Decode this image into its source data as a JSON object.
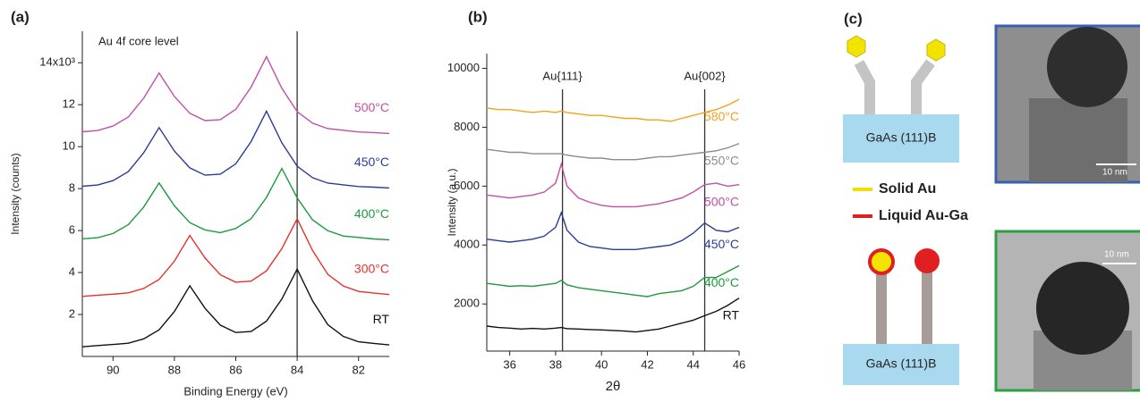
{
  "chart_data": [
    {
      "type": "line",
      "label": "(a)",
      "title": "Au 4f core level",
      "x_label": "Binding Energy (eV)",
      "y_label": "Intensity (counts)",
      "xlim": [
        91,
        81
      ],
      "xticks": [
        90,
        88,
        86,
        84,
        82
      ],
      "ylim": [
        0,
        15.5
      ],
      "yticks": [
        2,
        4,
        6,
        8,
        10,
        12,
        {
          "value": 14,
          "label": "14x10³"
        }
      ],
      "vlines": [
        84
      ],
      "x": [
        91,
        90.5,
        90,
        89.5,
        89,
        88.5,
        88,
        87.5,
        87,
        86.5,
        86,
        85.5,
        85,
        84.5,
        84,
        83.5,
        83,
        82.5,
        82,
        81.5,
        81
      ],
      "series": [
        {
          "name": "RT",
          "color": "#111111",
          "values": [
            0.46,
            0.52,
            0.57,
            0.63,
            0.84,
            1.27,
            2.14,
            3.37,
            2.29,
            1.49,
            1.14,
            1.19,
            1.68,
            2.74,
            4.16,
            2.65,
            1.51,
            0.96,
            0.7,
            0.62,
            0.55
          ]
        },
        {
          "name": "300°C",
          "color": "#e8302c",
          "values": [
            2.86,
            2.92,
            2.97,
            3.03,
            3.24,
            3.67,
            4.54,
            5.77,
            4.69,
            3.89,
            3.54,
            3.59,
            4.08,
            5.14,
            6.56,
            5.05,
            3.91,
            3.36,
            3.1,
            3.02,
            2.95
          ]
        },
        {
          "name": "400°C",
          "color": "#1c9a3c",
          "values": [
            5.61,
            5.66,
            5.86,
            6.28,
            7.12,
            8.27,
            7.18,
            6.38,
            6.03,
            5.9,
            6.1,
            6.56,
            7.58,
            8.96,
            7.56,
            6.51,
            5.99,
            5.74,
            5.67,
            5.6,
            5.56
          ]
        },
        {
          "name": "450°C",
          "color": "#2b3c98",
          "values": [
            8.11,
            8.17,
            8.38,
            8.81,
            9.71,
            10.91,
            9.79,
            8.99,
            8.64,
            8.69,
            9.18,
            10.24,
            11.69,
            10.18,
            9.07,
            8.52,
            8.26,
            8.18,
            8.1,
            8.07,
            8.03
          ]
        },
        {
          "name": "500°C",
          "color": "#c24fa6",
          "values": [
            10.71,
            10.77,
            10.98,
            11.41,
            12.31,
            13.51,
            12.39,
            11.59,
            11.24,
            11.29,
            11.78,
            12.84,
            14.29,
            12.78,
            11.67,
            11.12,
            10.86,
            10.78,
            10.7,
            10.67,
            10.63
          ]
        }
      ]
    },
    {
      "type": "line",
      "label": "(b)",
      "x_label": "2θ",
      "y_label": "Intensity (a.u.)",
      "xlim": [
        35,
        46
      ],
      "xticks": [
        36,
        38,
        40,
        42,
        44,
        46
      ],
      "ylim": [
        400,
        10500
      ],
      "yticks": [
        2000,
        4000,
        6000,
        8000,
        10000
      ],
      "vlines": [
        38.3,
        44.5
      ],
      "vline_labels": [
        "Au{111}",
        "Au{002}"
      ],
      "x": [
        35,
        35.5,
        36,
        36.5,
        37,
        37.5,
        38,
        38.25,
        38.5,
        39,
        39.5,
        40,
        40.5,
        41,
        41.5,
        42,
        42.5,
        43,
        43.5,
        44,
        44.5,
        45,
        45.5,
        46
      ],
      "series": [
        {
          "name": "RT",
          "color": "#111111",
          "values": [
            1250,
            1200,
            1180,
            1150,
            1170,
            1150,
            1180,
            1200,
            1160,
            1150,
            1130,
            1120,
            1100,
            1080,
            1050,
            1100,
            1150,
            1250,
            1350,
            1450,
            1600,
            1750,
            1950,
            2200
          ]
        },
        {
          "name": "400°C",
          "color": "#1c9a3c",
          "values": [
            2700,
            2650,
            2600,
            2620,
            2600,
            2650,
            2700,
            2800,
            2650,
            2550,
            2500,
            2450,
            2400,
            2350,
            2300,
            2250,
            2350,
            2400,
            2450,
            2600,
            2900,
            2900,
            3100,
            3300
          ]
        },
        {
          "name": "450°C",
          "color": "#2b3c98",
          "values": [
            4200,
            4150,
            4100,
            4150,
            4200,
            4300,
            4600,
            5100,
            4500,
            4100,
            3950,
            3900,
            3850,
            3850,
            3850,
            3900,
            3950,
            4000,
            4150,
            4400,
            4750,
            4500,
            4450,
            4600
          ]
        },
        {
          "name": "500°C",
          "color": "#c24fa6",
          "values": [
            5700,
            5650,
            5600,
            5650,
            5700,
            5800,
            6100,
            6750,
            6000,
            5600,
            5450,
            5350,
            5300,
            5300,
            5300,
            5350,
            5400,
            5500,
            5600,
            5800,
            6050,
            6100,
            6000,
            6050
          ]
        },
        {
          "name": "550°C",
          "color": "#8c8c8c",
          "values": [
            7250,
            7200,
            7150,
            7150,
            7100,
            7100,
            7100,
            7100,
            7050,
            7000,
            6950,
            6950,
            6900,
            6900,
            6900,
            6950,
            7000,
            7000,
            7050,
            7100,
            7150,
            7200,
            7300,
            7450
          ]
        },
        {
          "name": "580°C",
          "color": "#f2a21e",
          "values": [
            8650,
            8600,
            8600,
            8550,
            8500,
            8550,
            8500,
            8550,
            8500,
            8450,
            8400,
            8400,
            8350,
            8300,
            8300,
            8250,
            8250,
            8200,
            8300,
            8400,
            8500,
            8600,
            8750,
            8950
          ]
        }
      ]
    }
  ],
  "diagram": {
    "label": "(c)",
    "substrate_labels": [
      "GaAs (111)B",
      "GaAs (111)B"
    ],
    "legend": [
      {
        "name": "Solid Au",
        "color": "#f0e000"
      },
      {
        "name": "Liquid Au-Ga",
        "color": "#e02020"
      }
    ],
    "scale_bars": [
      "10 nm",
      "10 nm"
    ]
  }
}
